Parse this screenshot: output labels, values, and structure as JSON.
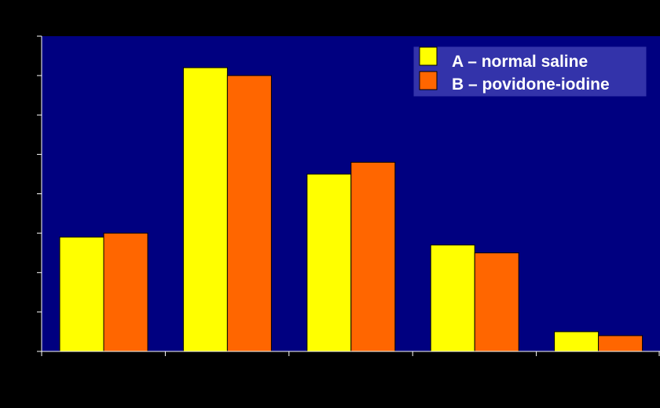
{
  "chart_data": {
    "type": "bar",
    "title": "",
    "xlabel": "",
    "ylabel": "",
    "categories": [
      "",
      "",
      "",
      "",
      ""
    ],
    "ylim": [
      0,
      8
    ],
    "y_tick_step": 1,
    "grid": false,
    "legend_position": "top-right",
    "background_color": "#000000",
    "plot_background_color": "#000080",
    "axis_color": "#ffffff",
    "series": [
      {
        "name": "A – normal saline",
        "color": "#ffff00",
        "values": [
          2.9,
          7.2,
          4.5,
          2.7,
          0.5
        ]
      },
      {
        "name": "B – povidone-iodine",
        "color": "#ff6600",
        "values": [
          3.0,
          7.0,
          4.8,
          2.5,
          0.4
        ]
      }
    ]
  }
}
